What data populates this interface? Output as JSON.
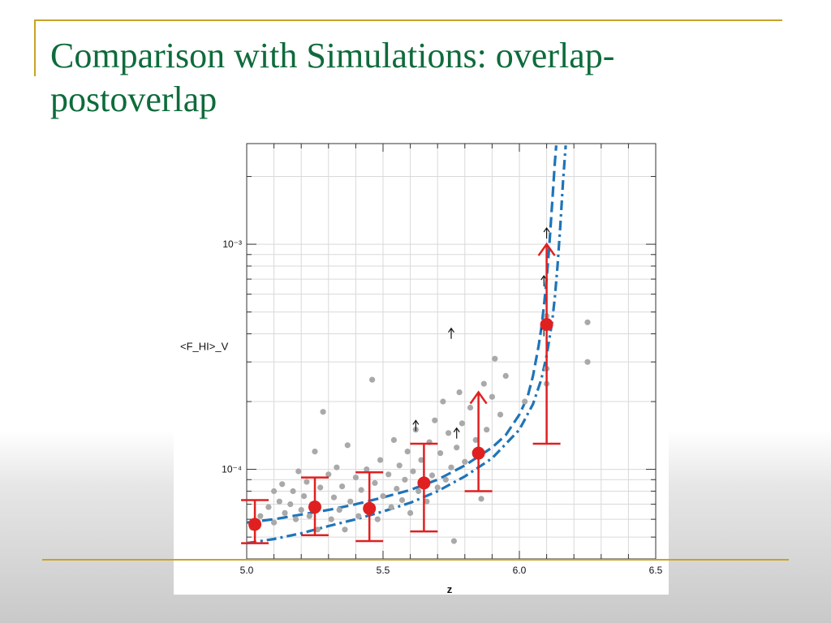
{
  "slide": {
    "title": "Comparison with Simulations: overlap-postoverlap"
  },
  "colors": {
    "title": "#0e6b3b",
    "rules": "#c9a227",
    "measurements": "#e02020",
    "simulations": "#1f74b8",
    "scatter": "#a9a9a9"
  },
  "chart_data": {
    "type": "scatter",
    "xlabel": "z",
    "ylabel": "<F_HI>_V",
    "xlim": [
      5.0,
      6.5
    ],
    "ylim": [
      4e-05,
      0.0028
    ],
    "y_scale": "log",
    "x_ticks": [
      {
        "value": 5.0,
        "label": "5.0"
      },
      {
        "value": 5.5,
        "label": "5.5"
      },
      {
        "value": 6.0,
        "label": "6.0"
      },
      {
        "value": 6.5,
        "label": "6.5"
      }
    ],
    "y_ticks": [
      {
        "value": 0.0001,
        "label": "10⁻⁴"
      },
      {
        "value": 0.001,
        "label": "10⁻³"
      }
    ],
    "grid": true,
    "measurements": [
      {
        "z": 5.03,
        "y": 5.7e-05,
        "err_low": 4.7e-05,
        "err_high": 7.3e-05
      },
      {
        "z": 5.25,
        "y": 6.8e-05,
        "err_low": 5.1e-05,
        "err_high": 9.2e-05
      },
      {
        "z": 5.45,
        "y": 6.7e-05,
        "err_low": 4.8e-05,
        "err_high": 9.7e-05
      },
      {
        "z": 5.65,
        "y": 8.7e-05,
        "err_low": 5.3e-05,
        "err_high": 0.00013
      },
      {
        "z": 5.85,
        "y": 0.000118,
        "err_low": 8e-05,
        "err_high": 0.00022,
        "lower_limit": true
      },
      {
        "z": 6.1,
        "y": 0.00044,
        "err_low": 0.00013,
        "err_high": 0.001,
        "lower_limit": true
      }
    ],
    "lower_limits": [
      {
        "z": 5.62,
        "y": 0.000148
      },
      {
        "z": 5.77,
        "y": 0.000137
      },
      {
        "z": 5.75,
        "y": 0.00038
      },
      {
        "z": 6.09,
        "y": 0.00039
      },
      {
        "z": 6.09,
        "y": 0.00065
      },
      {
        "z": 6.1,
        "y": 0.00106
      }
    ],
    "scatter_points": [
      {
        "z": 5.02,
        "y": 5.5e-05
      },
      {
        "z": 5.05,
        "y": 6.2e-05
      },
      {
        "z": 5.08,
        "y": 6.8e-05
      },
      {
        "z": 5.1,
        "y": 8e-05
      },
      {
        "z": 5.1,
        "y": 5.8e-05
      },
      {
        "z": 5.12,
        "y": 7.2e-05
      },
      {
        "z": 5.13,
        "y": 8.6e-05
      },
      {
        "z": 5.14,
        "y": 6.4e-05
      },
      {
        "z": 5.16,
        "y": 7e-05
      },
      {
        "z": 5.17,
        "y": 8e-05
      },
      {
        "z": 5.18,
        "y": 6e-05
      },
      {
        "z": 5.19,
        "y": 9.8e-05
      },
      {
        "z": 5.2,
        "y": 6.6e-05
      },
      {
        "z": 5.21,
        "y": 7.6e-05
      },
      {
        "z": 5.22,
        "y": 8.8e-05
      },
      {
        "z": 5.23,
        "y": 6.2e-05
      },
      {
        "z": 5.24,
        "y": 7e-05
      },
      {
        "z": 5.25,
        "y": 0.00012
      },
      {
        "z": 5.26,
        "y": 5.4e-05
      },
      {
        "z": 5.27,
        "y": 8.3e-05
      },
      {
        "z": 5.28,
        "y": 0.00018
      },
      {
        "z": 5.3,
        "y": 9.5e-05
      },
      {
        "z": 5.31,
        "y": 6e-05
      },
      {
        "z": 5.32,
        "y": 7.5e-05
      },
      {
        "z": 5.33,
        "y": 0.000102
      },
      {
        "z": 5.34,
        "y": 6.6e-05
      },
      {
        "z": 5.35,
        "y": 8.4e-05
      },
      {
        "z": 5.36,
        "y": 5.4e-05
      },
      {
        "z": 5.37,
        "y": 0.000128
      },
      {
        "z": 5.38,
        "y": 7.2e-05
      },
      {
        "z": 5.4,
        "y": 9.2e-05
      },
      {
        "z": 5.41,
        "y": 6.2e-05
      },
      {
        "z": 5.42,
        "y": 8.1e-05
      },
      {
        "z": 5.44,
        "y": 0.0001
      },
      {
        "z": 5.45,
        "y": 7e-05
      },
      {
        "z": 5.46,
        "y": 0.00025
      },
      {
        "z": 5.47,
        "y": 8.7e-05
      },
      {
        "z": 5.48,
        "y": 6e-05
      },
      {
        "z": 5.49,
        "y": 0.00011
      },
      {
        "z": 5.5,
        "y": 7.6e-05
      },
      {
        "z": 5.52,
        "y": 9.5e-05
      },
      {
        "z": 5.53,
        "y": 6.8e-05
      },
      {
        "z": 5.54,
        "y": 0.000135
      },
      {
        "z": 5.55,
        "y": 8.2e-05
      },
      {
        "z": 5.56,
        "y": 0.000104
      },
      {
        "z": 5.57,
        "y": 7.3e-05
      },
      {
        "z": 5.58,
        "y": 9e-05
      },
      {
        "z": 5.59,
        "y": 0.00012
      },
      {
        "z": 5.6,
        "y": 6.4e-05
      },
      {
        "z": 5.61,
        "y": 9.8e-05
      },
      {
        "z": 5.62,
        "y": 0.00015
      },
      {
        "z": 5.63,
        "y": 8e-05
      },
      {
        "z": 5.64,
        "y": 0.00011
      },
      {
        "z": 5.66,
        "y": 7.2e-05
      },
      {
        "z": 5.67,
        "y": 0.000132
      },
      {
        "z": 5.68,
        "y": 9.4e-05
      },
      {
        "z": 5.69,
        "y": 0.000165
      },
      {
        "z": 5.7,
        "y": 8.3e-05
      },
      {
        "z": 5.71,
        "y": 0.000118
      },
      {
        "z": 5.72,
        "y": 0.0002
      },
      {
        "z": 5.73,
        "y": 9e-05
      },
      {
        "z": 5.74,
        "y": 0.000145
      },
      {
        "z": 5.75,
        "y": 0.000102
      },
      {
        "z": 5.76,
        "y": 4.8e-05
      },
      {
        "z": 5.77,
        "y": 0.000125
      },
      {
        "z": 5.78,
        "y": 0.00022
      },
      {
        "z": 5.79,
        "y": 0.00016
      },
      {
        "z": 5.8,
        "y": 0.000108
      },
      {
        "z": 5.82,
        "y": 0.000188
      },
      {
        "z": 5.84,
        "y": 0.000135
      },
      {
        "z": 5.86,
        "y": 7.4e-05
      },
      {
        "z": 5.87,
        "y": 0.00024
      },
      {
        "z": 5.88,
        "y": 0.00015
      },
      {
        "z": 5.9,
        "y": 0.00021
      },
      {
        "z": 5.91,
        "y": 0.00031
      },
      {
        "z": 5.93,
        "y": 0.000175
      },
      {
        "z": 5.95,
        "y": 0.00026
      },
      {
        "z": 6.02,
        "y": 0.0002
      },
      {
        "z": 6.1,
        "y": 0.00028
      },
      {
        "z": 6.1,
        "y": 0.00024
      },
      {
        "z": 6.1,
        "y": 0.00048
      },
      {
        "z": 6.25,
        "y": 0.00045
      },
      {
        "z": 6.25,
        "y": 0.0003
      }
    ],
    "curves": [
      {
        "style": "dashed",
        "points": [
          {
            "z": 5.0,
            "y": 5.8e-05
          },
          {
            "z": 5.1,
            "y": 6e-05
          },
          {
            "z": 5.2,
            "y": 6.3e-05
          },
          {
            "z": 5.3,
            "y": 6.6e-05
          },
          {
            "z": 5.4,
            "y": 7e-05
          },
          {
            "z": 5.5,
            "y": 7.5e-05
          },
          {
            "z": 5.6,
            "y": 8.1e-05
          },
          {
            "z": 5.7,
            "y": 9e-05
          },
          {
            "z": 5.8,
            "y": 0.000104
          },
          {
            "z": 5.9,
            "y": 0.000125
          },
          {
            "z": 5.95,
            "y": 0.000142
          },
          {
            "z": 6.0,
            "y": 0.000175
          },
          {
            "z": 6.03,
            "y": 0.00021
          },
          {
            "z": 6.05,
            "y": 0.00026
          },
          {
            "z": 6.07,
            "y": 0.00035
          },
          {
            "z": 6.08,
            "y": 0.00042
          },
          {
            "z": 6.09,
            "y": 0.00053
          },
          {
            "z": 6.1,
            "y": 0.0007
          },
          {
            "z": 6.11,
            "y": 0.001
          },
          {
            "z": 6.12,
            "y": 0.0015
          },
          {
            "z": 6.13,
            "y": 0.0023
          },
          {
            "z": 6.135,
            "y": 0.00275
          }
        ]
      },
      {
        "style": "dash-dot",
        "points": [
          {
            "z": 5.0,
            "y": 4.7e-05
          },
          {
            "z": 5.1,
            "y": 4.9e-05
          },
          {
            "z": 5.2,
            "y": 5.2e-05
          },
          {
            "z": 5.3,
            "y": 5.6e-05
          },
          {
            "z": 5.4,
            "y": 6e-05
          },
          {
            "z": 5.5,
            "y": 6.5e-05
          },
          {
            "z": 5.6,
            "y": 7.1e-05
          },
          {
            "z": 5.7,
            "y": 8e-05
          },
          {
            "z": 5.8,
            "y": 9.3e-05
          },
          {
            "z": 5.9,
            "y": 0.000112
          },
          {
            "z": 6.0,
            "y": 0.00015
          },
          {
            "z": 6.05,
            "y": 0.000195
          },
          {
            "z": 6.08,
            "y": 0.00025
          },
          {
            "z": 6.1,
            "y": 0.00032
          },
          {
            "z": 6.12,
            "y": 0.00045
          },
          {
            "z": 6.13,
            "y": 0.00058
          },
          {
            "z": 6.14,
            "y": 0.0008
          },
          {
            "z": 6.15,
            "y": 0.0012
          },
          {
            "z": 6.16,
            "y": 0.0019
          },
          {
            "z": 6.17,
            "y": 0.00275
          }
        ]
      }
    ]
  }
}
